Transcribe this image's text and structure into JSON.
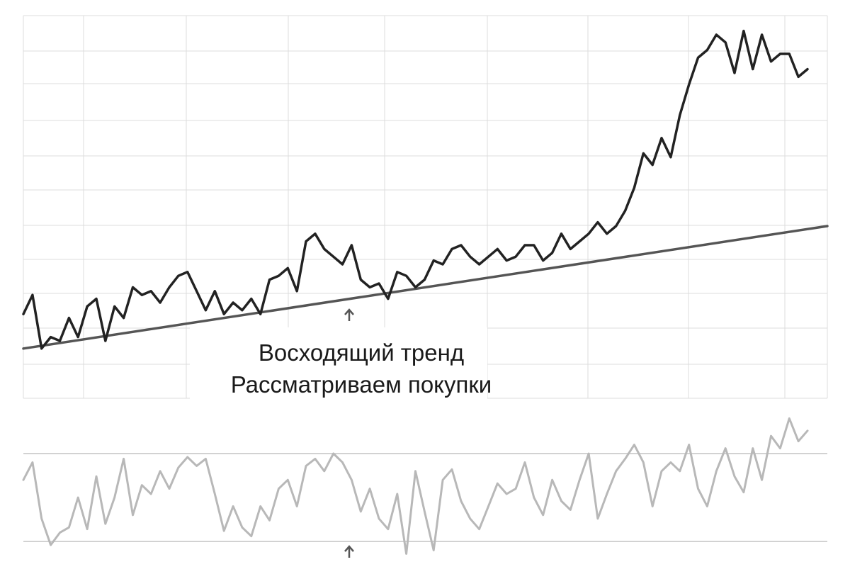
{
  "chart_data": [
    {
      "type": "line",
      "panel": "price",
      "grid": true,
      "colors": {
        "price": "#222222",
        "trendline": "#555555",
        "grid": "#dcdcdc"
      },
      "annotations": [
        "Восходящий тренд",
        "Рассматриваем покупки"
      ],
      "trendline": {
        "x": [
          0,
          100
        ],
        "y": [
          1.3,
          4.5
        ]
      },
      "series": [
        {
          "values": [
            2.2,
            2.7,
            1.3,
            1.6,
            1.5,
            2.1,
            1.6,
            2.4,
            2.6,
            1.5,
            2.4,
            2.1,
            2.9,
            2.7,
            2.8,
            2.5,
            2.9,
            3.2,
            3.3,
            2.8,
            2.3,
            2.8,
            2.2,
            2.5,
            2.3,
            2.6,
            2.2,
            3.1,
            3.2,
            3.4,
            2.8,
            4.1,
            4.3,
            3.9,
            3.7,
            3.5,
            4.0,
            3.1,
            2.9,
            3.0,
            2.6,
            3.3,
            3.2,
            2.9,
            3.1,
            3.6,
            3.5,
            3.9,
            4.0,
            3.7,
            3.5,
            3.7,
            3.9,
            3.6,
            3.7,
            4.0,
            4.0,
            3.6,
            3.8,
            4.3,
            3.9,
            4.1,
            4.3,
            4.6,
            4.3,
            4.5,
            4.9,
            5.5,
            6.4,
            6.1,
            6.8,
            6.3,
            7.4,
            8.2,
            8.9,
            9.1,
            9.5,
            9.3,
            8.5,
            9.6,
            8.6,
            9.5,
            8.8,
            9.0,
            9.0,
            8.4,
            8.6
          ]
        }
      ]
    },
    {
      "type": "line",
      "panel": "oscillator",
      "colors": {
        "oscillator": "#b8b8b8",
        "levels": "#c4c4c4"
      },
      "reference_lines": [
        75,
        25
      ],
      "series": [
        {
          "values": [
            60,
            70,
            38,
            23,
            30,
            33,
            50,
            32,
            62,
            35,
            50,
            72,
            40,
            57,
            52,
            65,
            55,
            67,
            73,
            68,
            72,
            52,
            31,
            45,
            33,
            28,
            45,
            37,
            55,
            60,
            45,
            68,
            72,
            65,
            75,
            70,
            60,
            42,
            55,
            38,
            32,
            52,
            18,
            65,
            42,
            20,
            60,
            66,
            48,
            38,
            32,
            45,
            58,
            52,
            55,
            70,
            50,
            40,
            60,
            48,
            43,
            60,
            75,
            38,
            52,
            65,
            72,
            80,
            70,
            45,
            65,
            70,
            65,
            80,
            55,
            45,
            65,
            78,
            62,
            53,
            78,
            60,
            85,
            78,
            95,
            82,
            88
          ]
        }
      ]
    }
  ]
}
